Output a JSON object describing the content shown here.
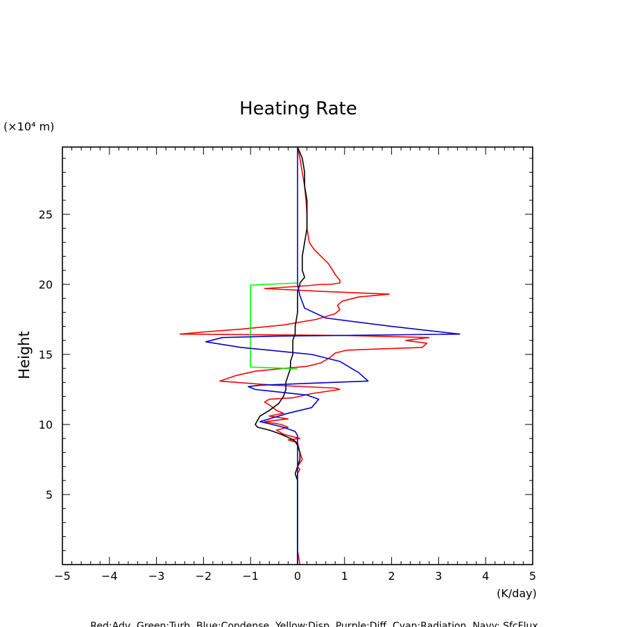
{
  "chart_data": {
    "type": "line",
    "title": "Heating Rate",
    "xlabel": "(K/day)",
    "ylabel": "Height",
    "y_unit_label": "(×10⁴ m)",
    "footer": "Red:Adv, Green:Turb, Blue:Condense, Yellow:Disp, Purple:Diff, Cyan:Radiation, Navy: SfcFlux",
    "xlim": [
      -5,
      5
    ],
    "ylim": [
      0,
      29.8
    ],
    "x_ticks": [
      -5,
      -4,
      -3,
      -2,
      -1,
      0,
      1,
      2,
      3,
      4,
      5
    ],
    "y_ticks": [
      5,
      10,
      15,
      20,
      25
    ],
    "grid": false,
    "series": [
      {
        "color": "#ff0000",
        "points": [
          [
            0.0,
            29.8
          ],
          [
            0.05,
            29
          ],
          [
            0.1,
            28
          ],
          [
            0.15,
            27
          ],
          [
            0.18,
            26
          ],
          [
            0.2,
            25
          ],
          [
            0.2,
            24
          ],
          [
            0.25,
            23
          ],
          [
            0.35,
            22.5
          ],
          [
            0.5,
            22
          ],
          [
            0.65,
            21.5
          ],
          [
            0.75,
            21
          ],
          [
            0.8,
            20.7
          ],
          [
            0.9,
            20.3
          ],
          [
            0.9,
            20.1
          ],
          [
            0.7,
            20.0
          ],
          [
            0.5,
            20.0
          ],
          [
            0.2,
            19.9
          ],
          [
            -0.7,
            19.7
          ],
          [
            0.5,
            19.5
          ],
          [
            1.95,
            19.3
          ],
          [
            1.3,
            19.1
          ],
          [
            0.95,
            18.8
          ],
          [
            0.85,
            18.5
          ],
          [
            0.9,
            18.2
          ],
          [
            0.8,
            17.9
          ],
          [
            0.4,
            17.5
          ],
          [
            -0.3,
            17.1
          ],
          [
            -1.2,
            16.8
          ],
          [
            -2.0,
            16.6
          ],
          [
            -2.5,
            16.45
          ],
          [
            1.0,
            16.35
          ],
          [
            2.8,
            16.2
          ],
          [
            2.3,
            16.0
          ],
          [
            2.75,
            15.8
          ],
          [
            2.65,
            15.5
          ],
          [
            1.8,
            15.4
          ],
          [
            1.05,
            15.3
          ],
          [
            0.8,
            15.1
          ],
          [
            0.7,
            14.8
          ],
          [
            0.5,
            14.4
          ],
          [
            0.2,
            14.15
          ],
          [
            -0.3,
            14.0
          ],
          [
            -0.9,
            13.8
          ],
          [
            -1.3,
            13.5
          ],
          [
            -1.65,
            13.1
          ],
          [
            -0.5,
            12.8
          ],
          [
            0.8,
            12.6
          ],
          [
            0.9,
            12.5
          ],
          [
            0.3,
            12.2
          ],
          [
            -0.1,
            11.9
          ],
          [
            -0.6,
            11.8
          ],
          [
            -0.7,
            11.6
          ],
          [
            -0.6,
            11.4
          ],
          [
            -0.45,
            11.0
          ],
          [
            -0.3,
            10.8
          ],
          [
            -0.6,
            10.6
          ],
          [
            -0.2,
            10.4
          ],
          [
            -0.7,
            10.2
          ],
          [
            -0.35,
            10.0
          ],
          [
            -0.2,
            9.8
          ],
          [
            -0.45,
            9.6
          ],
          [
            -0.3,
            9.3
          ],
          [
            0.05,
            9.0
          ],
          [
            -0.2,
            8.9
          ],
          [
            0.0,
            8.7
          ],
          [
            0.05,
            8.0
          ],
          [
            0.1,
            7.5
          ],
          [
            0.0,
            7.0
          ],
          [
            0.05,
            6.8
          ],
          [
            0.0,
            6.5
          ],
          [
            0.0,
            5.0
          ],
          [
            0.0,
            1.0
          ],
          [
            0.05,
            0.0
          ]
        ]
      },
      {
        "color": "#000000",
        "points": [
          [
            0.0,
            29.8
          ],
          [
            0.1,
            29
          ],
          [
            0.15,
            28
          ],
          [
            0.15,
            27
          ],
          [
            0.2,
            26
          ],
          [
            0.2,
            25
          ],
          [
            0.2,
            24
          ],
          [
            0.15,
            23
          ],
          [
            0.1,
            22
          ],
          [
            0.1,
            21
          ],
          [
            0.15,
            20.5
          ],
          [
            0.05,
            20.1
          ],
          [
            0.05,
            20.0
          ],
          [
            0.0,
            19.5
          ],
          [
            0.0,
            19.0
          ],
          [
            0.0,
            18.0
          ],
          [
            -0.05,
            17.0
          ],
          [
            -0.05,
            16.5
          ],
          [
            -0.1,
            16.0
          ],
          [
            -0.1,
            15.0
          ],
          [
            -0.15,
            14.5
          ],
          [
            -0.15,
            14.0
          ],
          [
            -0.2,
            13.5
          ],
          [
            -0.25,
            13.0
          ],
          [
            -0.25,
            12.5
          ],
          [
            -0.3,
            12.0
          ],
          [
            -0.4,
            11.5
          ],
          [
            -0.6,
            11.0
          ],
          [
            -0.8,
            10.6
          ],
          [
            -0.85,
            10.3
          ],
          [
            -0.9,
            10.0
          ],
          [
            -0.85,
            9.8
          ],
          [
            -0.6,
            9.6
          ],
          [
            -0.35,
            9.3
          ],
          [
            -0.15,
            9.0
          ],
          [
            -0.05,
            8.8
          ],
          [
            0.0,
            8.5
          ],
          [
            0.05,
            8.0
          ],
          [
            0.05,
            7.5
          ],
          [
            0.0,
            7.0
          ],
          [
            -0.05,
            6.5
          ],
          [
            0.0,
            6.0
          ],
          [
            0.0,
            0.0
          ]
        ]
      },
      {
        "color": "#00ff00",
        "points": [
          [
            0.0,
            20.1
          ],
          [
            -1.0,
            19.95
          ],
          [
            -1.0,
            14.1
          ],
          [
            -0.2,
            14.0
          ],
          [
            0.0,
            13.95
          ]
        ]
      },
      {
        "color": "#0000cc",
        "points": [
          [
            0.0,
            29.8
          ],
          [
            0.0,
            22
          ],
          [
            0.0,
            20.0
          ],
          [
            0.05,
            19.2
          ],
          [
            0.15,
            18.3
          ],
          [
            0.6,
            17.6
          ],
          [
            2.0,
            17.0
          ],
          [
            3.45,
            16.45
          ],
          [
            -0.5,
            16.3
          ],
          [
            -1.6,
            16.2
          ],
          [
            -1.95,
            15.9
          ],
          [
            -1.2,
            15.5
          ],
          [
            0.3,
            15.0
          ],
          [
            0.9,
            14.5
          ],
          [
            1.3,
            13.7
          ],
          [
            1.5,
            13.1
          ],
          [
            -0.8,
            12.8
          ],
          [
            -1.05,
            12.7
          ],
          [
            -0.9,
            12.5
          ],
          [
            0.2,
            12.1
          ],
          [
            0.45,
            11.8
          ],
          [
            0.3,
            11.2
          ],
          [
            -0.2,
            10.8
          ],
          [
            -0.6,
            10.4
          ],
          [
            -0.8,
            10.2
          ],
          [
            -0.6,
            10.05
          ],
          [
            -0.3,
            9.8
          ],
          [
            -0.05,
            9.5
          ],
          [
            0.0,
            9.2
          ],
          [
            0.0,
            0.0
          ]
        ]
      }
    ]
  }
}
